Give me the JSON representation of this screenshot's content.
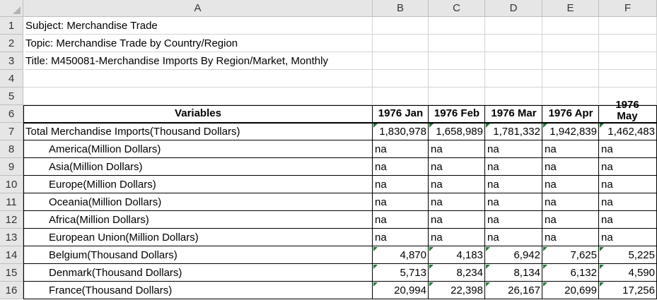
{
  "columns": [
    "A",
    "B",
    "C",
    "D",
    "E",
    "F"
  ],
  "rows": [
    "1",
    "2",
    "3",
    "4",
    "5",
    "6",
    "7",
    "8",
    "9",
    "10",
    "11",
    "12",
    "13",
    "14",
    "15",
    "16"
  ],
  "meta": {
    "subject": "Subject: Merchandise Trade",
    "topic": "Topic: Merchandise Trade by Country/Region",
    "title": "Title: M450081-Merchandise Imports By Region/Market, Monthly"
  },
  "table": {
    "header_label": "Variables",
    "periods": [
      "1976 Jan",
      "1976 Feb",
      "1976 Mar",
      "1976 Apr",
      "1976 May"
    ],
    "rows": [
      {
        "label": "Total Merchandise Imports(Thousand Dollars)",
        "values": [
          "1,830,978",
          "1,658,989",
          "1,781,332",
          "1,942,839",
          "1,462,483"
        ]
      },
      {
        "label": "America(Million Dollars)",
        "values": [
          "na",
          "na",
          "na",
          "na",
          "na"
        ]
      },
      {
        "label": "Asia(Million Dollars)",
        "values": [
          "na",
          "na",
          "na",
          "na",
          "na"
        ]
      },
      {
        "label": "Europe(Million Dollars)",
        "values": [
          "na",
          "na",
          "na",
          "na",
          "na"
        ]
      },
      {
        "label": "Oceania(Million Dollars)",
        "values": [
          "na",
          "na",
          "na",
          "na",
          "na"
        ]
      },
      {
        "label": "Africa(Million Dollars)",
        "values": [
          "na",
          "na",
          "na",
          "na",
          "na"
        ]
      },
      {
        "label": "European Union(Million Dollars)",
        "values": [
          "na",
          "na",
          "na",
          "na",
          "na"
        ]
      },
      {
        "label": "Belgium(Thousand Dollars)",
        "values": [
          "4,870",
          "4,183",
          "6,942",
          "7,625",
          "5,225"
        ]
      },
      {
        "label": "Denmark(Thousand Dollars)",
        "values": [
          "5,713",
          "8,234",
          "8,134",
          "6,132",
          "4,590"
        ]
      },
      {
        "label": "France(Thousand Dollars)",
        "values": [
          "20,994",
          "22,398",
          "26,167",
          "20,699",
          "17,256"
        ]
      }
    ]
  }
}
